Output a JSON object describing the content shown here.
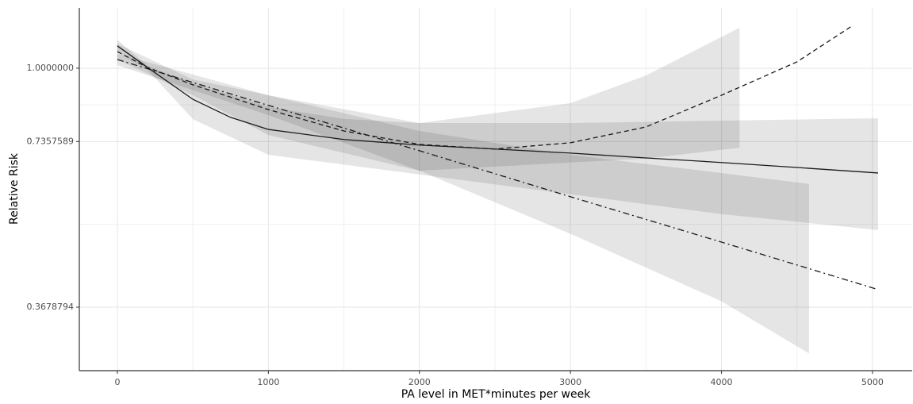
{
  "chart_data": {
    "type": "line",
    "x_label": "PA level in MET*minutes per week",
    "y_label": "Relative Risk",
    "xlim": [
      -252,
      5263
    ],
    "xticks": [
      0,
      1000,
      2000,
      3000,
      4000,
      5000
    ],
    "ylim": [
      0.282,
      1.287
    ],
    "yticks": [
      0.3678794,
      0.7357589,
      {
        "value": 1,
        "label": "1.0000000"
      }
    ],
    "log_y": true,
    "grid": true,
    "band_color": "#000000",
    "series": [
      {
        "color": "#1a1a1a",
        "style": "solid",
        "x": [
          0,
          200,
          500,
          750,
          1000,
          1500,
          2000,
          2500,
          3000,
          3500,
          4000,
          4500,
          5037
        ],
        "values": [
          1.098,
          1.003,
          0.878,
          0.814,
          0.774,
          0.742,
          0.725,
          0.713,
          0.701,
          0.687,
          0.674,
          0.66,
          0.645
        ],
        "band": {
          "x": [
            0,
            200,
            500,
            1000,
            1500,
            2000,
            3000,
            4000,
            5037
          ],
          "upper": [
            1.127,
            1.01,
            0.939,
            0.85,
            0.809,
            0.795,
            0.795,
            0.803,
            0.811
          ],
          "lower": [
            1.069,
            0.993,
            0.808,
            0.696,
            0.668,
            0.641,
            0.59,
            0.543,
            0.508
          ]
        }
      },
      {
        "color": "#1a1a1a",
        "style": "dashed",
        "x": [
          0,
          200,
          500,
          1000,
          1500,
          2000,
          2500,
          3000,
          3500,
          4000,
          4500,
          4870
        ],
        "values": [
          1.072,
          1.003,
          0.933,
          0.841,
          0.769,
          0.727,
          0.713,
          0.732,
          0.782,
          0.893,
          1.027,
          1.196
        ],
        "band": {
          "x": [
            0,
            500,
            1000,
            2000,
            3000,
            3500,
            4120
          ],
          "upper": [
            1.108,
            0.954,
            0.893,
            0.795,
            0.864,
            0.97,
            1.185
          ],
          "lower": [
            1.037,
            0.893,
            0.756,
            0.651,
            0.674,
            0.685,
            0.717
          ]
        }
      },
      {
        "color": "#1a1a1a",
        "style": "dotdash",
        "x": [
          0,
          1000,
          2000,
          3000,
          4000,
          5037
        ],
        "values": [
          1.037,
          0.856,
          0.708,
          0.584,
          0.483,
          0.396
        ],
        "band": {
          "x": [
            0,
            1000,
            2000,
            3000,
            4000,
            4580
          ],
          "upper": [
            1.062,
            0.893,
            0.769,
            0.696,
            0.645,
            0.616
          ],
          "lower": [
            1.013,
            0.822,
            0.651,
            0.5,
            0.377,
            0.303
          ]
        }
      }
    ]
  }
}
